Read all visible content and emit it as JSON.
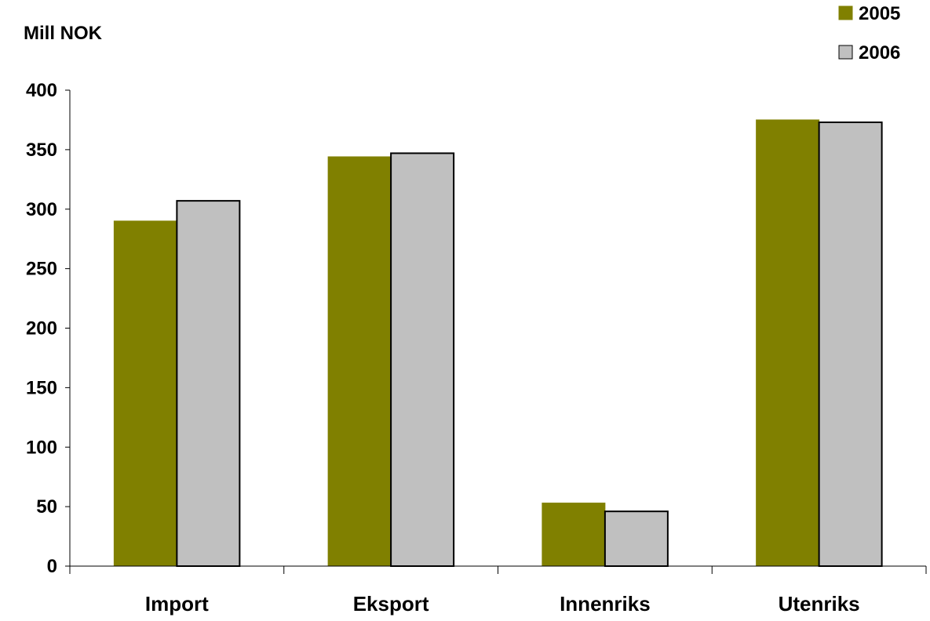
{
  "chart_data": {
    "type": "bar",
    "title": "",
    "xlabel": "",
    "ylabel": "Mill NOK",
    "ylim": [
      0,
      400
    ],
    "yticks": [
      0,
      50,
      100,
      150,
      200,
      250,
      300,
      350,
      400
    ],
    "categories": [
      "Import",
      "Eksport",
      "Innenriks",
      "Utenriks"
    ],
    "series": [
      {
        "name": "2005",
        "color": "#808000",
        "values": [
          290,
          344,
          53,
          375
        ]
      },
      {
        "name": "2006",
        "color": "#C0C0C0",
        "values": [
          307,
          347,
          46,
          373
        ]
      }
    ],
    "grid": false,
    "legend_position": "top-right"
  }
}
